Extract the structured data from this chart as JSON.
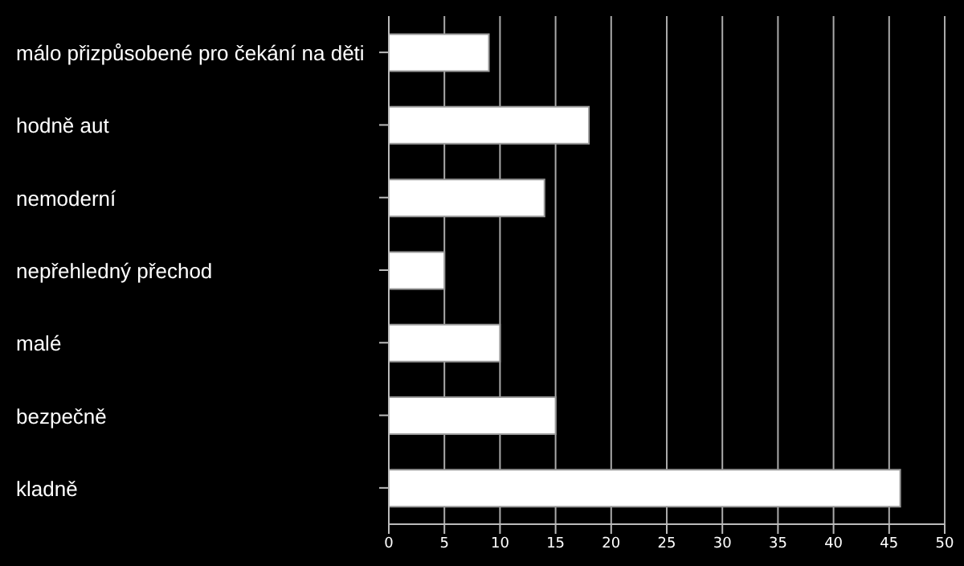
{
  "chart_data": {
    "type": "bar",
    "orientation": "horizontal",
    "categories": [
      "málo přizpůsobené pro čekání na děti",
      "hodně aut",
      "nemoderní",
      "nepřehledný přechod",
      "malé",
      "bezpečně",
      "kladně"
    ],
    "values": [
      9,
      18,
      14,
      5,
      10,
      15,
      46
    ],
    "color": "#ffffff",
    "xlim": [
      0,
      50
    ],
    "xticks": [
      0,
      5,
      10,
      15,
      20,
      25,
      30,
      35,
      40,
      45,
      50
    ],
    "grid": "x",
    "legend": false
  }
}
